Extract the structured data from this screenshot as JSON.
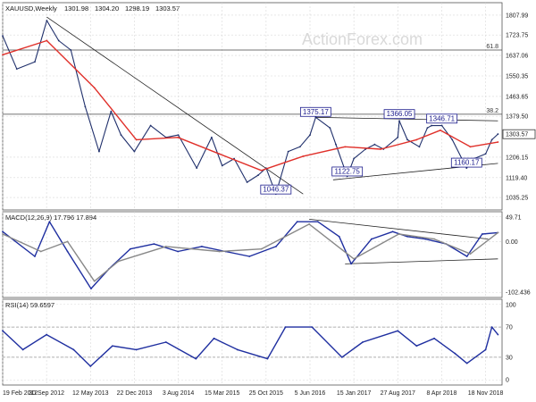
{
  "watermark": "ActionForex.com",
  "chart_data": [
    {
      "panel": "price",
      "type": "line",
      "title": "XAUUSD,Weekly",
      "ohlc": [
        "1301.98",
        "1304.20",
        "1298.19",
        "1303.57"
      ],
      "ylim": [
        1035.25,
        1807.99
      ],
      "yticks": [
        "1807.99",
        "1723.75",
        "1637.06",
        "1550.35",
        "1463.65",
        "1379.50",
        "1206.15",
        "1119.40",
        "1035.25"
      ],
      "current_price": "1303.57",
      "fib_levels": [
        {
          "label": "61.8",
          "value": 1660
        },
        {
          "label": "38.2",
          "value": 1388
        }
      ],
      "annotations": [
        {
          "text": "1375.17",
          "value": 1375.17,
          "date": "2016-07-04"
        },
        {
          "text": "1366.05",
          "value": 1366.05,
          "date": "2017-09-04"
        },
        {
          "text": "1346.71",
          "value": 1346.71,
          "date": "2018-04-09"
        },
        {
          "text": "1122.75",
          "value": 1122.75,
          "date": "2016-12-12"
        },
        {
          "text": "1160.17",
          "value": 1160.17,
          "date": "2018-08-13"
        },
        {
          "text": "1046.37",
          "value": 1046.37,
          "date": "2015-12-14"
        }
      ],
      "series": [
        {
          "name": "price",
          "color": "#1f2f6b",
          "x": [
            "2012-02-19",
            "2012-05-01",
            "2012-08-01",
            "2012-10-01",
            "2012-12-01",
            "2013-02-01",
            "2013-04-15",
            "2013-06-25",
            "2013-08-25",
            "2013-10-15",
            "2013-12-22",
            "2014-03-15",
            "2014-06-01",
            "2014-08-03",
            "2014-11-05",
            "2015-01-20",
            "2015-03-15",
            "2015-05-15",
            "2015-07-20",
            "2015-09-15",
            "2015-10-25",
            "2015-12-14",
            "2016-02-15",
            "2016-04-15",
            "2016-06-05",
            "2016-07-04",
            "2016-09-15",
            "2016-10-15",
            "2016-12-12",
            "2017-01-15",
            "2017-03-15",
            "2017-05-01",
            "2017-06-15",
            "2017-08-27",
            "2017-09-04",
            "2017-10-15",
            "2017-12-15",
            "2018-01-25",
            "2018-02-15",
            "2018-04-09",
            "2018-06-01",
            "2018-08-13",
            "2018-09-20",
            "2018-11-18",
            "2018-12-20",
            "2019-01-20"
          ],
          "y": [
            1720,
            1580,
            1610,
            1785,
            1700,
            1660,
            1420,
            1230,
            1400,
            1300,
            1230,
            1340,
            1290,
            1300,
            1160,
            1290,
            1170,
            1200,
            1100,
            1130,
            1160,
            1050,
            1230,
            1250,
            1300,
            1375,
            1330,
            1260,
            1125,
            1200,
            1240,
            1260,
            1240,
            1290,
            1360,
            1280,
            1250,
            1330,
            1340,
            1340,
            1280,
            1160,
            1200,
            1220,
            1280,
            1304
          ]
        },
        {
          "name": "MA",
          "color": "#e0302a",
          "x": [
            "2012-02-19",
            "2012-10-01",
            "2013-06-01",
            "2014-01-01",
            "2014-08-01",
            "2015-03-01",
            "2015-10-01",
            "2016-05-01",
            "2016-12-01",
            "2017-06-01",
            "2017-12-01",
            "2018-04-01",
            "2018-09-01",
            "2019-01-20"
          ],
          "y": [
            1640,
            1700,
            1500,
            1280,
            1290,
            1220,
            1150,
            1210,
            1250,
            1240,
            1280,
            1320,
            1250,
            1270
          ]
        }
      ],
      "trendlines": [
        {
          "x": [
            "2016-07-04",
            "2019-01-20"
          ],
          "y": [
            1375,
            1360
          ]
        },
        {
          "x": [
            "2016-10-01",
            "2019-01-20"
          ],
          "y": [
            1110,
            1180
          ]
        },
        {
          "x": [
            "2012-10-01",
            "2016-05-01"
          ],
          "y": [
            1800,
            1050
          ]
        }
      ],
      "grid": true
    },
    {
      "panel": "macd",
      "type": "line",
      "title": "MACD(12,26,9) 17.796 17.894",
      "ylim": [
        -102.436,
        49.71
      ],
      "yticks": [
        "49.71",
        "0.00",
        "-102.436"
      ],
      "series": [
        {
          "name": "MACD",
          "color": "#1f2fa0",
          "x": [
            "2012-02-19",
            "2012-08-01",
            "2012-10-15",
            "2013-01-15",
            "2013-05-15",
            "2013-08-15",
            "2013-12-01",
            "2014-04-01",
            "2014-08-01",
            "2014-12-01",
            "2015-04-01",
            "2015-08-01",
            "2015-12-15",
            "2016-04-01",
            "2016-07-15",
            "2016-11-01",
            "2017-01-01",
            "2017-04-15",
            "2017-08-01",
            "2017-10-15",
            "2018-01-15",
            "2018-05-01",
            "2018-08-15",
            "2018-11-01",
            "2019-01-20"
          ],
          "y": [
            20,
            -30,
            40,
            -20,
            -95,
            -55,
            -15,
            -5,
            -20,
            -10,
            -20,
            -30,
            -10,
            40,
            40,
            10,
            -45,
            5,
            20,
            10,
            5,
            -5,
            -30,
            15,
            18
          ]
        },
        {
          "name": "Signal",
          "color": "#888888",
          "x": [
            "2012-02-19",
            "2012-09-01",
            "2013-01-15",
            "2013-06-01",
            "2013-10-01",
            "2014-06-01",
            "2015-03-01",
            "2015-10-01",
            "2016-06-01",
            "2017-01-15",
            "2017-09-01",
            "2018-03-01",
            "2018-09-01",
            "2019-01-20"
          ],
          "y": [
            15,
            -20,
            0,
            -80,
            -40,
            -10,
            -20,
            -15,
            35,
            -35,
            15,
            5,
            -25,
            18
          ]
        }
      ],
      "trendlines": [
        {
          "x": [
            "2016-06-01",
            "2018-12-01"
          ],
          "y": [
            45,
            5
          ]
        },
        {
          "x": [
            "2016-12-01",
            "2019-01-20"
          ],
          "y": [
            -45,
            -35
          ]
        }
      ],
      "grid": true
    },
    {
      "panel": "rsi",
      "type": "line",
      "title": "RSI(14) 59.6597",
      "ylim": [
        0,
        100
      ],
      "yticks": [
        "100",
        "70",
        "30",
        "0"
      ],
      "levels": [
        70,
        30
      ],
      "series": [
        {
          "name": "RSI",
          "color": "#1f2fa0",
          "x": [
            "2012-02-19",
            "2012-06-01",
            "2012-09-30",
            "2013-02-15",
            "2013-05-12",
            "2013-09-01",
            "2014-01-01",
            "2014-06-01",
            "2014-11-01",
            "2015-02-01",
            "2015-06-01",
            "2015-11-01",
            "2016-02-01",
            "2016-06-15",
            "2016-11-15",
            "2017-03-01",
            "2017-08-27",
            "2017-12-01",
            "2018-03-01",
            "2018-06-15",
            "2018-08-15",
            "2018-11-18",
            "2018-12-20",
            "2019-01-20"
          ],
          "y": [
            65,
            40,
            60,
            40,
            18,
            45,
            40,
            50,
            28,
            55,
            40,
            28,
            70,
            70,
            30,
            50,
            65,
            45,
            55,
            35,
            22,
            40,
            70,
            60
          ]
        }
      ],
      "grid": true
    }
  ],
  "xaxis": {
    "start": "2012-02-19",
    "end": "2019-02-10",
    "ticks": [
      {
        "label": "19 Feb 2012",
        "date": "2012-02-19"
      },
      {
        "label": "30 Sep 2012",
        "date": "2012-09-30"
      },
      {
        "label": "12 May 2013",
        "date": "2013-05-12"
      },
      {
        "label": "22 Dec 2013",
        "date": "2013-12-22"
      },
      {
        "label": "3 Aug 2014",
        "date": "2014-08-03"
      },
      {
        "label": "15 Mar 2015",
        "date": "2015-03-15"
      },
      {
        "label": "25 Oct 2015",
        "date": "2015-10-25"
      },
      {
        "label": "5 Jun 2016",
        "date": "2016-06-05"
      },
      {
        "label": "15 Jan 2017",
        "date": "2017-01-15"
      },
      {
        "label": "27 Aug 2017",
        "date": "2017-08-27"
      },
      {
        "label": "8 Apr 2018",
        "date": "2018-04-08"
      },
      {
        "label": "18 Nov 2018",
        "date": "2018-11-18"
      }
    ]
  }
}
